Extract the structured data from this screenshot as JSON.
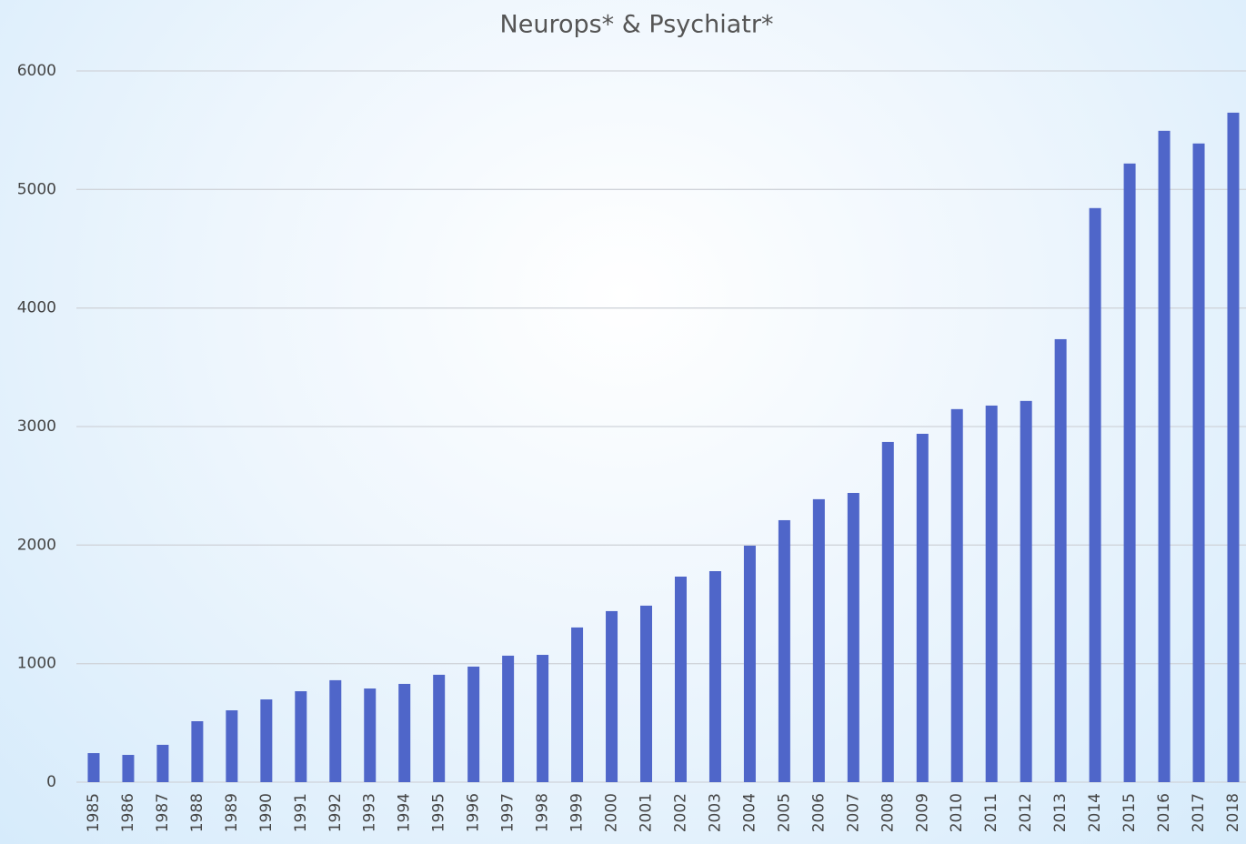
{
  "chart_data": {
    "type": "bar",
    "title": "Neurops* & Psychiatr*",
    "categories": [
      "1985",
      "1986",
      "1987",
      "1988",
      "1989",
      "1990",
      "1991",
      "1992",
      "1993",
      "1994",
      "1995",
      "1996",
      "1997",
      "1998",
      "1999",
      "2000",
      "2001",
      "2002",
      "2003",
      "2004",
      "2005",
      "2006",
      "2007",
      "2008",
      "2009",
      "2010",
      "2011",
      "2012",
      "2013",
      "2014",
      "2015",
      "2016",
      "2017",
      "2018"
    ],
    "values": [
      245,
      230,
      315,
      514,
      606,
      698,
      767,
      860,
      790,
      829,
      906,
      975,
      1067,
      1074,
      1305,
      1443,
      1489,
      1734,
      1780,
      1995,
      2210,
      2387,
      2440,
      2870,
      2939,
      3147,
      3177,
      3216,
      3737,
      4843,
      5219,
      5495,
      5388,
      5648
    ],
    "color": "#4f66c9",
    "ylim": [
      0,
      6000
    ],
    "yticks": [
      0,
      1000,
      2000,
      3000,
      4000,
      5000,
      6000
    ],
    "grid": true
  }
}
